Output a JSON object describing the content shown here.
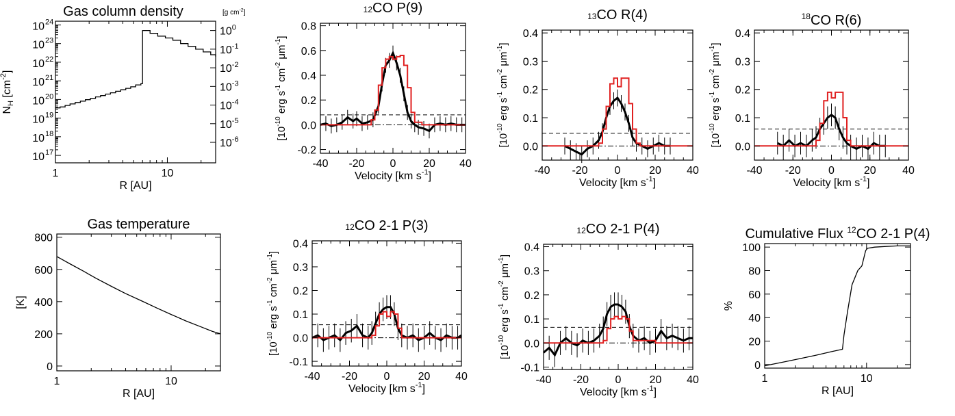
{
  "chart_data": [
    {
      "id": "column-density",
      "type": "line",
      "title_parts": [
        "Gas column density"
      ],
      "title_sup": [
        "",
        ""
      ],
      "right_unit": "[g cm",
      "right_unit_sup": "-2",
      "xlabel": "R [AU]",
      "ylabel_base": "N",
      "ylabel_sub": "H",
      "ylabel_rest": " [cm",
      "ylabel_sup": "-2",
      "xscale": "log",
      "yscale": "log",
      "xlim": [
        1,
        27
      ],
      "ylim": [
        16.6,
        24.2
      ],
      "xticks": [
        {
          "v": 1,
          "label": "1"
        },
        {
          "v": 10,
          "label": "10"
        }
      ],
      "yticks_left": [
        17,
        18,
        19,
        20,
        21,
        22,
        23,
        24
      ],
      "ytick_base": "10",
      "yticks_right": [
        {
          "v": 17.7,
          "label": "10",
          "sup": "-6"
        },
        {
          "v": 18.7,
          "label": "10",
          "sup": "-5"
        },
        {
          "v": 19.7,
          "label": "10",
          "sup": "-4"
        },
        {
          "v": 20.7,
          "label": "10",
          "sup": "-3"
        },
        {
          "v": 21.7,
          "label": "10",
          "sup": "-2"
        },
        {
          "v": 22.7,
          "label": "10",
          "sup": "-1"
        },
        {
          "v": 23.7,
          "label": "10",
          "sup": "0"
        }
      ],
      "series": [
        {
          "style": "step",
          "color": "#000000",
          "x": [
            1.0,
            1.1,
            1.22,
            1.35,
            1.5,
            1.67,
            1.85,
            2.05,
            2.28,
            2.53,
            2.8,
            3.1,
            3.45,
            3.83,
            4.25,
            4.7,
            5.2,
            5.8,
            6.0,
            6.0,
            7.0,
            8.2,
            9.6,
            11.2,
            13.1,
            15.3,
            17.9,
            20.9,
            24.4,
            27.0
          ],
          "y": [
            19.55,
            19.6,
            19.68,
            19.76,
            19.84,
            19.91,
            19.99,
            20.06,
            20.14,
            20.21,
            20.29,
            20.36,
            20.44,
            20.52,
            20.6,
            20.68,
            20.78,
            20.85,
            20.9,
            23.7,
            23.55,
            23.4,
            23.3,
            23.18,
            23.0,
            22.85,
            22.7,
            22.55,
            22.4,
            22.3
          ]
        }
      ]
    },
    {
      "id": "co12-p9",
      "type": "line",
      "title_parts": [
        "",
        "CO P(9)"
      ],
      "title_sup": [
        "12",
        ""
      ],
      "xlabel": "Velocity [km s",
      "xlabel_sup": "-1",
      "ylabel": "[10^-10 erg s^-1 cm^-2 μm^-1]",
      "xlim": [
        -40,
        40
      ],
      "ylim": [
        -0.23,
        0.82
      ],
      "xticks": [
        -40,
        -20,
        0,
        20,
        40
      ],
      "yticks": [
        {
          "v": -0.2,
          "label": "-0.2"
        },
        {
          "v": 0.0,
          "label": "0.0"
        },
        {
          "v": 0.2,
          "label": "0.2"
        },
        {
          "v": 0.4,
          "label": "0.4"
        },
        {
          "v": 0.6,
          "label": "0.6"
        },
        {
          "v": 0.8,
          "label": "0.8"
        }
      ],
      "dashed_level": 0.08,
      "dashdot_level": 0.0,
      "model": {
        "color": "#e02020",
        "x": [
          -40,
          -34,
          -28,
          -20,
          -16,
          -12,
          -10,
          -8,
          -6,
          -4,
          -2,
          0,
          2,
          4,
          6,
          8,
          10,
          12,
          16,
          20,
          28,
          34,
          40
        ],
        "y": [
          0.0,
          0.0,
          0.0,
          0.0,
          0.0,
          0.04,
          0.12,
          0.32,
          0.46,
          0.53,
          0.55,
          0.53,
          0.55,
          0.56,
          0.48,
          0.3,
          0.1,
          0.02,
          0.0,
          0.0,
          0.0,
          0.0,
          0.0
        ]
      },
      "observed": {
        "color": "#000000",
        "x": [
          -40,
          -37,
          -34,
          -31,
          -28,
          -25,
          -22,
          -20,
          -17,
          -14,
          -11,
          -8,
          -6,
          -4,
          -2,
          0,
          2,
          4,
          6,
          8,
          10,
          12,
          14,
          17,
          20,
          23,
          26,
          29,
          32,
          35,
          38,
          40
        ],
        "y": [
          0.0,
          0.01,
          -0.01,
          0.0,
          0.02,
          0.06,
          0.03,
          0.05,
          0.01,
          0.02,
          0.04,
          0.15,
          0.33,
          0.48,
          0.52,
          0.58,
          0.5,
          0.4,
          0.25,
          0.1,
          0.03,
          0.0,
          -0.02,
          -0.03,
          -0.05,
          0.0,
          0.01,
          0.0,
          0.01,
          0.0,
          0.0,
          0.0
        ],
        "err": 0.06
      }
    },
    {
      "id": "co13-r4",
      "type": "line",
      "title_parts": [
        "",
        "CO R(4)"
      ],
      "title_sup": [
        "13",
        ""
      ],
      "xlabel": "Velocity [km s",
      "xlabel_sup": "-1",
      "ylabel": "[10^-10 erg s^-1 cm^-2 μm^-1]",
      "xlim": [
        -40,
        40
      ],
      "ylim": [
        -0.05,
        0.41
      ],
      "xticks": [
        -40,
        -20,
        0,
        20,
        40
      ],
      "yticks": [
        {
          "v": 0.0,
          "label": "0.0"
        },
        {
          "v": 0.1,
          "label": "0.1"
        },
        {
          "v": 0.2,
          "label": "0.2"
        },
        {
          "v": 0.3,
          "label": "0.3"
        },
        {
          "v": 0.4,
          "label": "0.4"
        }
      ],
      "dashed_level": 0.045,
      "dashdot_level": 0.0,
      "model": {
        "color": "#e02020",
        "x": [
          -40,
          -30,
          -20,
          -12,
          -10,
          -8,
          -6,
          -4,
          -2,
          0,
          2,
          4,
          6,
          8,
          10,
          12,
          20,
          30,
          40
        ],
        "y": [
          0.0,
          0.0,
          0.0,
          0.0,
          0.01,
          0.06,
          0.14,
          0.22,
          0.24,
          0.21,
          0.24,
          0.24,
          0.15,
          0.06,
          0.01,
          0.0,
          0.0,
          0.0,
          0.0
        ]
      },
      "observed": {
        "color": "#000000",
        "x": [
          -28,
          -25,
          -22,
          -19,
          -16,
          -13,
          -10,
          -8,
          -6,
          -4,
          -2,
          0,
          2,
          4,
          6,
          8,
          10,
          13,
          16,
          19,
          22,
          25,
          28
        ],
        "y": [
          0.0,
          -0.01,
          -0.02,
          -0.03,
          -0.01,
          0.0,
          0.02,
          0.05,
          0.1,
          0.14,
          0.16,
          0.17,
          0.15,
          0.12,
          0.08,
          0.03,
          0.01,
          0.0,
          -0.01,
          0.0,
          0.01,
          0.0,
          0.0
        ],
        "err": 0.03
      }
    },
    {
      "id": "c18o-r6",
      "type": "line",
      "title_parts": [
        "C",
        "O R(6)"
      ],
      "title_sup": [
        "18",
        ""
      ],
      "xlabel": "Velocity [km s",
      "xlabel_sup": "-1",
      "ylabel": "[10^-10 erg s^-1 cm^-2 μm^-1]",
      "xlim": [
        -40,
        40
      ],
      "ylim": [
        -0.05,
        0.41
      ],
      "xticks": [
        -40,
        -20,
        0,
        20,
        40
      ],
      "yticks": [
        {
          "v": 0.0,
          "label": "0.0"
        },
        {
          "v": 0.1,
          "label": "0.1"
        },
        {
          "v": 0.2,
          "label": "0.2"
        },
        {
          "v": 0.3,
          "label": "0.3"
        },
        {
          "v": 0.4,
          "label": "0.4"
        }
      ],
      "dashed_level": 0.06,
      "dashdot_level": 0.0,
      "model": {
        "color": "#e02020",
        "x": [
          -40,
          -30,
          -20,
          -10,
          -8,
          -6,
          -4,
          -2,
          0,
          2,
          4,
          6,
          8,
          10,
          20,
          30,
          40
        ],
        "y": [
          0.0,
          0.0,
          0.0,
          0.0,
          0.02,
          0.08,
          0.16,
          0.19,
          0.17,
          0.19,
          0.19,
          0.1,
          0.02,
          0.0,
          0.0,
          0.0,
          0.0
        ]
      },
      "observed": {
        "color": "#000000",
        "x": [
          -28,
          -25,
          -22,
          -19,
          -16,
          -13,
          -10,
          -8,
          -6,
          -4,
          -2,
          0,
          2,
          4,
          6,
          8,
          10,
          13,
          16,
          19,
          22,
          25,
          28
        ],
        "y": [
          0.01,
          0.0,
          0.02,
          0.0,
          0.01,
          0.0,
          0.02,
          0.03,
          0.06,
          0.08,
          0.1,
          0.11,
          0.1,
          0.06,
          0.03,
          0.01,
          0.0,
          -0.01,
          0.0,
          -0.01,
          0.01,
          0.0,
          0.0
        ],
        "err": 0.04
      }
    },
    {
      "id": "gas-temperature",
      "type": "line",
      "title_parts": [
        "Gas temperature"
      ],
      "title_sup": [
        ""
      ],
      "xlabel": "R [AU]",
      "ylabel": "[K]",
      "xscale": "log",
      "xlim": [
        1,
        27
      ],
      "ylim": [
        -30,
        820
      ],
      "xticks": [
        {
          "v": 1,
          "label": "1"
        },
        {
          "v": 10,
          "label": "10"
        }
      ],
      "yticks": [
        {
          "v": 0,
          "label": "0"
        },
        {
          "v": 200,
          "label": "200"
        },
        {
          "v": 400,
          "label": "400"
        },
        {
          "v": 600,
          "label": "600"
        },
        {
          "v": 800,
          "label": "800"
        }
      ],
      "series": [
        {
          "style": "line",
          "color": "#000000",
          "x": [
            1.0,
            1.3,
            1.7,
            2.2,
            3.0,
            4.0,
            5.5,
            7.5,
            10.0,
            13.5,
            18.0,
            23.0,
            27.0
          ],
          "y": [
            680,
            635,
            590,
            545,
            495,
            450,
            405,
            360,
            320,
            280,
            245,
            215,
            200
          ]
        }
      ]
    },
    {
      "id": "co12-21-p3",
      "type": "line",
      "title_parts": [
        "",
        "CO 2-1 P(3)"
      ],
      "title_sup": [
        "12",
        ""
      ],
      "xlabel": "Velocity [km s",
      "xlabel_sup": "-1",
      "ylabel": "[10^-10 erg s^-1 cm^-2 μm^-1]",
      "xlim": [
        -40,
        40
      ],
      "ylim": [
        -0.12,
        0.41
      ],
      "xticks": [
        -40,
        -20,
        0,
        20,
        40
      ],
      "yticks": [
        {
          "v": -0.1,
          "label": "-0.1"
        },
        {
          "v": 0.0,
          "label": "0.0"
        },
        {
          "v": 0.1,
          "label": "0.1"
        },
        {
          "v": 0.2,
          "label": "0.2"
        },
        {
          "v": 0.3,
          "label": "0.3"
        },
        {
          "v": 0.4,
          "label": "0.4"
        }
      ],
      "dashed_level": 0.055,
      "dashdot_level": 0.0,
      "model": {
        "color": "#e02020",
        "x": [
          -40,
          -20,
          -10,
          -8,
          -6,
          -4,
          -2,
          0,
          2,
          4,
          6,
          8,
          20,
          40
        ],
        "y": [
          0.0,
          0.0,
          0.0,
          0.01,
          0.05,
          0.1,
          0.11,
          0.09,
          0.11,
          0.1,
          0.04,
          0.0,
          0.0,
          0.0
        ]
      },
      "observed": {
        "color": "#000000",
        "x": [
          -40,
          -37,
          -34,
          -31,
          -28,
          -25,
          -22,
          -19,
          -16,
          -13,
          -10,
          -8,
          -6,
          -4,
          -2,
          0,
          2,
          4,
          6,
          8,
          11,
          14,
          17,
          20,
          23,
          26,
          29,
          32,
          35,
          38,
          40
        ],
        "y": [
          0.0,
          0.01,
          -0.01,
          0.0,
          0.01,
          -0.01,
          0.02,
          0.03,
          0.05,
          0.01,
          0.0,
          0.02,
          0.06,
          0.1,
          0.12,
          0.13,
          0.13,
          0.1,
          0.04,
          0.01,
          0.0,
          0.01,
          -0.01,
          0.0,
          0.02,
          0.0,
          -0.01,
          0.01,
          0.0,
          0.0,
          0.01
        ],
        "err": 0.05
      }
    },
    {
      "id": "co12-21-p4",
      "type": "line",
      "title_parts": [
        "",
        "CO 2-1 P(4)"
      ],
      "title_sup": [
        "12",
        ""
      ],
      "xlabel": "Velocity [km s",
      "xlabel_sup": "-1",
      "ylabel": "[10^-10 erg s^-1 cm^-2 μm^-1]",
      "xlim": [
        -40,
        40
      ],
      "ylim": [
        -0.11,
        0.41
      ],
      "xticks": [
        -40,
        -20,
        0,
        20,
        40
      ],
      "yticks": [
        {
          "v": -0.1,
          "label": "-0.1"
        },
        {
          "v": 0.0,
          "label": "0.0"
        },
        {
          "v": 0.1,
          "label": "0.1"
        },
        {
          "v": 0.2,
          "label": "0.2"
        },
        {
          "v": 0.3,
          "label": "0.3"
        },
        {
          "v": 0.4,
          "label": "0.4"
        }
      ],
      "dashed_level": 0.065,
      "dashdot_level": 0.0,
      "model": {
        "color": "#e02020",
        "x": [
          -40,
          -20,
          -10,
          -8,
          -6,
          -4,
          -2,
          0,
          2,
          4,
          6,
          8,
          20,
          40
        ],
        "y": [
          0.0,
          0.0,
          0.0,
          0.01,
          0.06,
          0.1,
          0.11,
          0.1,
          0.11,
          0.1,
          0.05,
          0.01,
          0.0,
          0.0
        ]
      },
      "observed": {
        "color": "#000000",
        "x": [
          -40,
          -37,
          -34,
          -31,
          -28,
          -25,
          -22,
          -19,
          -16,
          -13,
          -10,
          -8,
          -6,
          -4,
          -2,
          0,
          2,
          4,
          6,
          8,
          11,
          14,
          17,
          20,
          23,
          26,
          29,
          32,
          35,
          38,
          40
        ],
        "y": [
          -0.04,
          -0.02,
          -0.05,
          0.0,
          0.02,
          0.0,
          -0.01,
          0.01,
          0.0,
          0.01,
          0.03,
          0.06,
          0.12,
          0.15,
          0.16,
          0.16,
          0.15,
          0.13,
          0.07,
          0.03,
          0.01,
          0.02,
          0.0,
          0.01,
          0.05,
          0.02,
          0.03,
          0.02,
          0.01,
          0.02,
          0.02
        ],
        "err": 0.05
      }
    },
    {
      "id": "cumulative-flux",
      "type": "line",
      "title_parts": [
        "Cumulative Flux ",
        "CO 2-1 P(4)"
      ],
      "title_sup": [
        "",
        "12"
      ],
      "xlabel": "R [AU]",
      "ylabel": "%",
      "xscale": "log",
      "xlim": [
        1,
        27
      ],
      "ylim": [
        -3,
        103
      ],
      "xticks": [
        {
          "v": 1,
          "label": "1"
        },
        {
          "v": 10,
          "label": "10"
        }
      ],
      "yticks": [
        {
          "v": 0,
          "label": "0"
        },
        {
          "v": 20,
          "label": "20"
        },
        {
          "v": 40,
          "label": "40"
        },
        {
          "v": 60,
          "label": "60"
        },
        {
          "v": 80,
          "label": "80"
        },
        {
          "v": 100,
          "label": "100"
        }
      ],
      "series": [
        {
          "style": "line",
          "color": "#000000",
          "x": [
            1.0,
            1.5,
            2.2,
            3.2,
            4.5,
            5.8,
            6.0,
            6.5,
            7.2,
            8.2,
            9.0,
            9.6,
            9.8,
            10.2,
            12.0,
            15.0,
            20.0,
            27.0
          ],
          "y": [
            -1,
            2,
            5,
            8,
            11,
            13,
            25,
            45,
            68,
            80,
            84,
            94,
            97,
            99,
            100,
            100.5,
            101,
            101
          ]
        }
      ]
    }
  ]
}
